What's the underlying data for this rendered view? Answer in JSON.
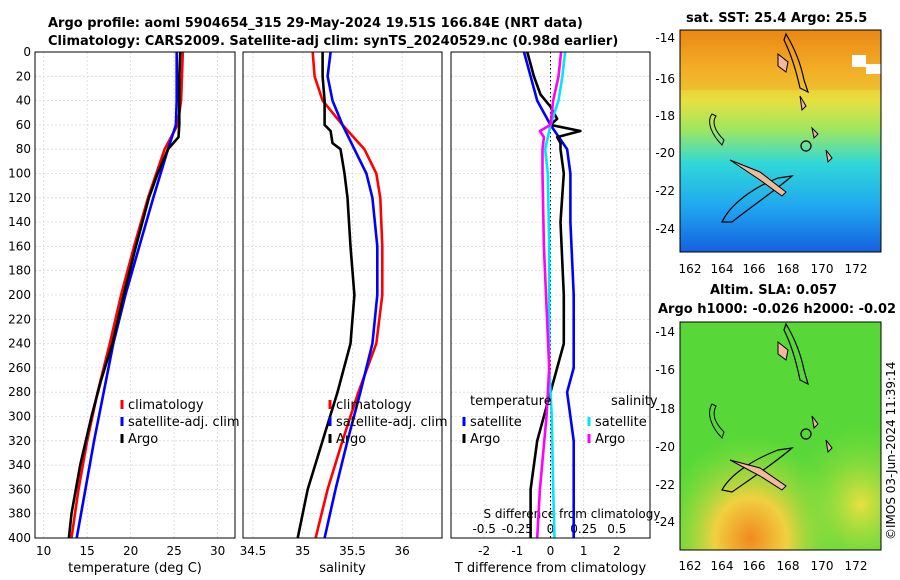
{
  "title": {
    "line1": "Argo profile: aoml 5904654_315 29-May-2024 19.51S 166.84E (NRT data)",
    "line2": "Climatology: CARS2009. Satellite-adj clim: synTS_20240529.nc (0.98d earlier)"
  },
  "colors": {
    "climatology": "#ff0000",
    "satellite": "#0000ff",
    "argo": "#000000",
    "sat_salinity": "#00e5ff",
    "argo_salinity": "#ff00ff"
  },
  "chart_data": [
    {
      "type": "line",
      "name": "temperature-panel",
      "xlabel": "temperature (deg C)",
      "xlim": [
        9,
        32
      ],
      "xticks": [
        10,
        15,
        20,
        25,
        30
      ],
      "ylim": [
        0,
        400
      ],
      "yticks": [
        0,
        20,
        40,
        60,
        80,
        100,
        120,
        140,
        160,
        180,
        200,
        220,
        240,
        260,
        280,
        300,
        320,
        340,
        360,
        380,
        400
      ],
      "legend": [
        "climatology",
        "satellite-adj. clim",
        "Argo"
      ],
      "series": [
        {
          "name": "climatology",
          "depth": [
            0,
            40,
            60,
            80,
            120,
            160,
            200,
            240,
            280,
            320,
            360,
            400
          ],
          "values": [
            26.0,
            25.8,
            25.4,
            23.9,
            22.0,
            20.4,
            18.9,
            17.6,
            16.2,
            15.0,
            14.0,
            13.2
          ]
        },
        {
          "name": "satellite",
          "depth": [
            0,
            40,
            60,
            80,
            120,
            160,
            200,
            240,
            280,
            320,
            360,
            400
          ],
          "values": [
            25.3,
            25.3,
            25.2,
            24.3,
            22.6,
            21.0,
            19.4,
            18.0,
            16.9,
            15.8,
            14.8,
            13.8
          ]
        },
        {
          "name": "Argo",
          "depth": [
            0,
            20,
            40,
            60,
            70,
            80,
            100,
            120,
            160,
            200,
            240,
            270,
            300,
            340,
            380,
            400
          ],
          "values": [
            25.7,
            25.6,
            25.6,
            25.6,
            25.5,
            24.3,
            23.1,
            22.1,
            20.6,
            19.2,
            17.9,
            16.6,
            15.5,
            14.2,
            13.2,
            12.9
          ]
        }
      ]
    },
    {
      "type": "line",
      "name": "salinity-panel",
      "xlabel": "salinity",
      "xlim": [
        34.4,
        36.4
      ],
      "xticks": [
        34.5,
        35,
        35.5,
        36
      ],
      "xticklabels": [
        "34.5",
        "35",
        "35.5",
        "36"
      ],
      "ylim": [
        0,
        400
      ],
      "legend": [
        "climatology",
        "satellite-adj. clim",
        "Argo"
      ],
      "series": [
        {
          "name": "climatology",
          "depth": [
            0,
            20,
            40,
            60,
            80,
            100,
            120,
            160,
            200,
            240,
            280,
            320,
            360,
            400
          ],
          "values": [
            35.1,
            35.12,
            35.2,
            35.4,
            35.62,
            35.74,
            35.78,
            35.8,
            35.8,
            35.74,
            35.56,
            35.4,
            35.25,
            35.13
          ]
        },
        {
          "name": "satellite",
          "depth": [
            0,
            20,
            40,
            60,
            80,
            100,
            120,
            160,
            200,
            240,
            280,
            320,
            360,
            400
          ],
          "values": [
            35.28,
            35.25,
            35.3,
            35.4,
            35.52,
            35.64,
            35.7,
            35.75,
            35.75,
            35.7,
            35.58,
            35.45,
            35.33,
            35.22
          ]
        },
        {
          "name": "Argo",
          "depth": [
            0,
            20,
            40,
            60,
            65,
            75,
            80,
            100,
            120,
            160,
            200,
            240,
            280,
            320,
            360,
            400
          ],
          "values": [
            35.2,
            35.2,
            35.22,
            35.22,
            35.28,
            35.3,
            35.38,
            35.42,
            35.45,
            35.48,
            35.52,
            35.48,
            35.35,
            35.2,
            35.05,
            34.95
          ]
        }
      ]
    },
    {
      "type": "line",
      "name": "difference-panel",
      "xlabel": "T difference from climatology",
      "xlim": [
        -3,
        3
      ],
      "xticks": [
        -2,
        -1,
        0,
        1,
        2
      ],
      "secondary_xlabel": "S difference from climatology",
      "secondary_xlim": [
        -0.75,
        0.75
      ],
      "secondary_xticklabels": [
        "-0.5",
        "-0.25",
        "0",
        "0.25",
        "0.5"
      ],
      "ylim": [
        0,
        400
      ],
      "legend_temperature_heading": "temperature",
      "legend_salinity_heading": "salinity",
      "legend_temperature": [
        "satellite",
        "Argo"
      ],
      "legend_salinity": [
        "satellite",
        "Argo"
      ],
      "series": [
        {
          "name": "T satellite",
          "depth": [
            0,
            20,
            40,
            60,
            80,
            100,
            140,
            200,
            260,
            280,
            320,
            360,
            400
          ],
          "values": [
            -0.8,
            -0.6,
            -0.4,
            0.0,
            0.5,
            0.6,
            0.6,
            0.7,
            0.7,
            0.5,
            0.7,
            0.7,
            0.7
          ]
        },
        {
          "name": "T Argo",
          "depth": [
            0,
            20,
            35,
            45,
            55,
            60,
            65,
            70,
            75,
            80,
            100,
            140,
            200,
            240,
            280,
            320,
            360,
            400
          ],
          "values": [
            -0.7,
            -0.5,
            -0.3,
            0.0,
            0.2,
            0.0,
            0.9,
            0.2,
            0.3,
            0.3,
            0.4,
            0.3,
            0.4,
            0.4,
            0.0,
            -0.4,
            -0.6,
            -0.6
          ]
        },
        {
          "name": "S satellite",
          "depth": [
            0,
            20,
            40,
            60,
            80,
            100,
            160,
            260,
            300,
            360,
            400
          ],
          "values": [
            0.11,
            0.09,
            0.06,
            0.0,
            -0.04,
            -0.02,
            -0.01,
            -0.01,
            0.01,
            0.02,
            0.03
          ]
        },
        {
          "name": "S Argo",
          "depth": [
            0,
            20,
            40,
            60,
            65,
            70,
            80,
            100,
            160,
            260,
            300,
            360,
            400
          ],
          "values": [
            0.08,
            0.06,
            0.02,
            0.0,
            -0.08,
            -0.05,
            -0.06,
            -0.06,
            -0.05,
            -0.01,
            -0.03,
            -0.08,
            -0.1
          ]
        }
      ]
    }
  ],
  "maps": {
    "sst_title": "sat. SST: 25.4 Argo: 25.5",
    "sla_title_line1": "Altim. SLA: 0.057",
    "sla_title_line2": "Argo h1000: -0.026 h2000: -0.02",
    "lat_labels": [
      "-14",
      "-16",
      "-18",
      "-20",
      "-22",
      "-24"
    ],
    "lon_labels": [
      "162",
      "164",
      "166",
      "168",
      "170",
      "172"
    ]
  },
  "watermark": "©IMOS 03-Jun-2024 11:39:14"
}
